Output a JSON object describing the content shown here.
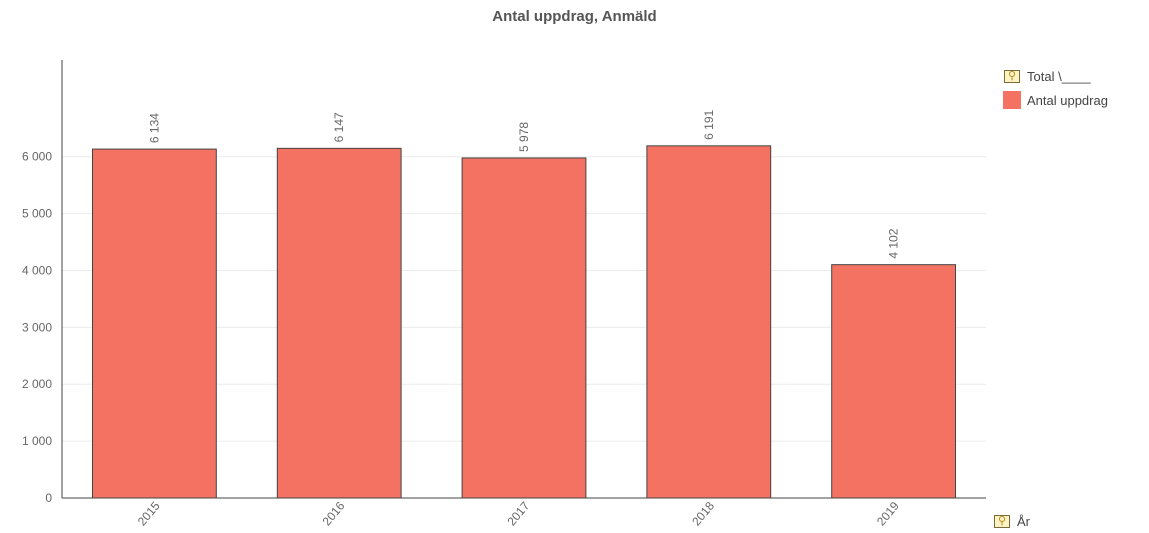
{
  "chart_data": {
    "type": "bar",
    "title": "Antal uppdrag, Anmäld",
    "categories": [
      "2015",
      "2016",
      "2017",
      "2018",
      "2019"
    ],
    "series": [
      {
        "name": "Antal uppdrag",
        "values": [
          6134,
          6147,
          5978,
          6191,
          4102
        ],
        "labels": [
          "6 134",
          "6 147",
          "5 978",
          "6 191",
          "4 102"
        ],
        "color": "#f47262"
      }
    ],
    "yticks": [
      0,
      1000,
      2000,
      3000,
      4000,
      5000,
      6000
    ],
    "ytick_labels": [
      "0",
      "1 000",
      "2 000",
      "3 000",
      "4 000",
      "5 000",
      "6 000"
    ],
    "ylim": [
      0,
      7700
    ],
    "grid": true,
    "legend_position": "top-right"
  },
  "legend": {
    "header_label": "Total \\____",
    "series_label": "Antal uppdrag",
    "header_icon": "dimension-icon"
  },
  "x_dimension": {
    "label": "År",
    "icon": "dimension-icon"
  }
}
